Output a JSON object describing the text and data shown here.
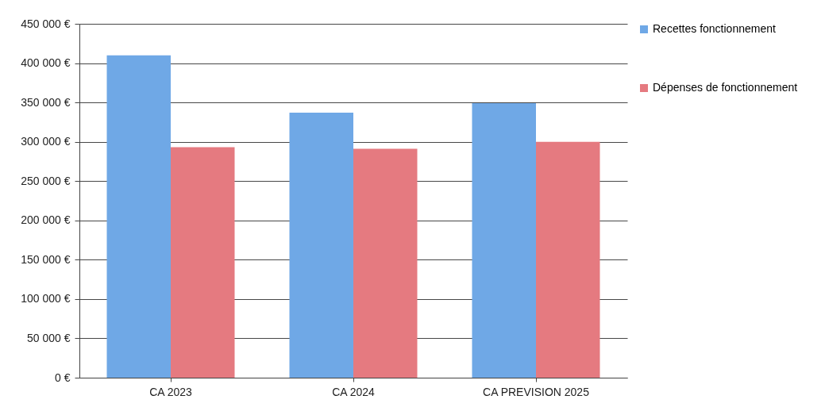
{
  "chart_data": {
    "type": "bar",
    "categories": [
      "CA 2023",
      "CA 2024",
      "CA PREVISION 2025"
    ],
    "series": [
      {
        "name": "Recettes fonctionnement",
        "color": "#6fa8e6",
        "values": [
          410000,
          337000,
          349000
        ]
      },
      {
        "name": "Dépenses de fonctionnement",
        "color": "#e57a80",
        "values": [
          293000,
          291000,
          300000
        ]
      }
    ],
    "ylim": [
      0,
      450000
    ],
    "yticks": [
      {
        "value": 0,
        "label": "0 €"
      },
      {
        "value": 50000,
        "label": "50 000 €"
      },
      {
        "value": 100000,
        "label": "100 000 €"
      },
      {
        "value": 150000,
        "label": "150 000 €"
      },
      {
        "value": 200000,
        "label": "200 000 €"
      },
      {
        "value": 250000,
        "label": "250 000 €"
      },
      {
        "value": 300000,
        "label": "300 000 €"
      },
      {
        "value": 350000,
        "label": "350 000 €"
      },
      {
        "value": 400000,
        "label": "400 000 €"
      },
      {
        "value": 450000,
        "label": "450 000 €"
      }
    ],
    "grid": "y",
    "legend": "right"
  }
}
